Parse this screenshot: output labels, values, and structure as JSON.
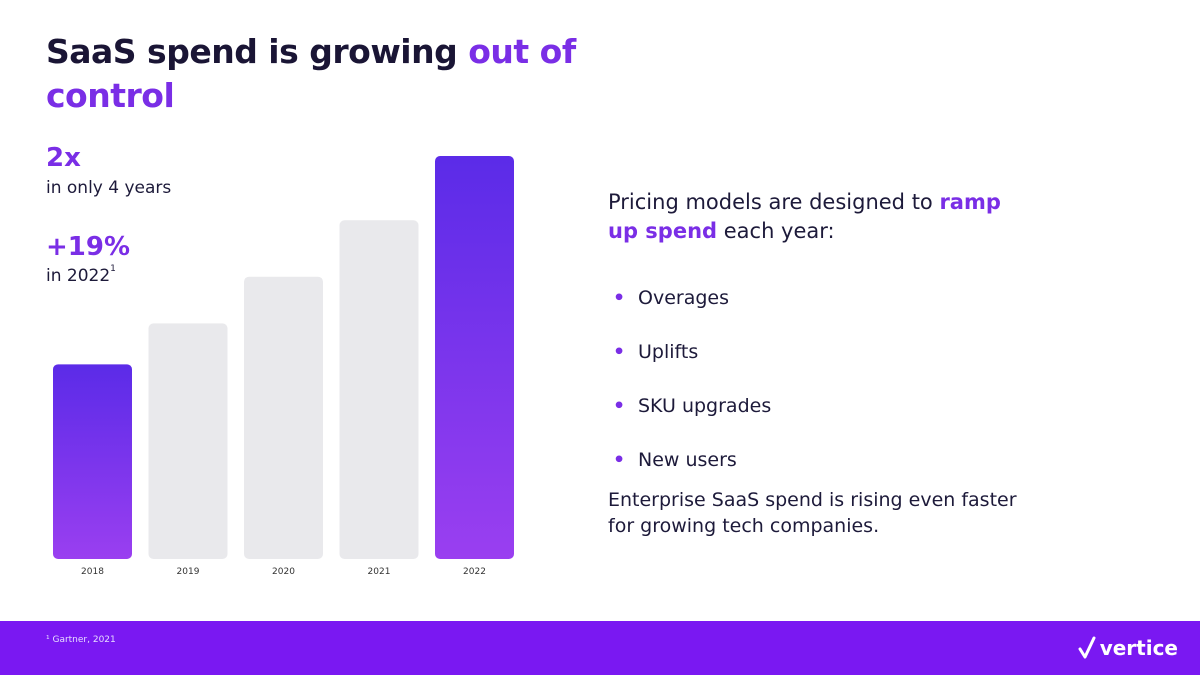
{
  "slide": {
    "title_part1": "SaaS spend is growing ",
    "title_accent": "out of control"
  },
  "stats": [
    {
      "value": "2x",
      "caption": "in only 4 years",
      "superscript": ""
    },
    {
      "value": "+19%",
      "caption": "in 2022",
      "superscript": "1"
    }
  ],
  "right": {
    "intro_part1": "Pricing models are designed to ",
    "intro_accent": "ramp up spend",
    "intro_part2": " each year:",
    "bullet_glyph": "•",
    "bullets": [
      "Overages",
      "Uplifts",
      "SKU upgrades",
      "New users"
    ],
    "closing": "Enterprise SaaS spend is rising even faster for growing tech companies."
  },
  "footer": {
    "footnote": "¹ Gartner, 2021",
    "logo_text": "vertice",
    "logo_icon": "check-icon"
  },
  "colors": {
    "accent": "#7a2ee6",
    "highlight_gradient_top": "#5b2be8",
    "highlight_gradient_bottom": "#9a3ff0",
    "neutral_bar": "#e9e9ec",
    "footer": "#7a18f2"
  },
  "chart_data": {
    "type": "bar",
    "categories": [
      "2018",
      "2019",
      "2020",
      "2021",
      "2022"
    ],
    "values": [
      1.0,
      1.21,
      1.45,
      1.74,
      2.07
    ],
    "highlighted": [
      "2018",
      "2022"
    ],
    "ylim": [
      0,
      2.07
    ],
    "grid": false,
    "title": "",
    "xlabel": "",
    "ylabel": ""
  }
}
